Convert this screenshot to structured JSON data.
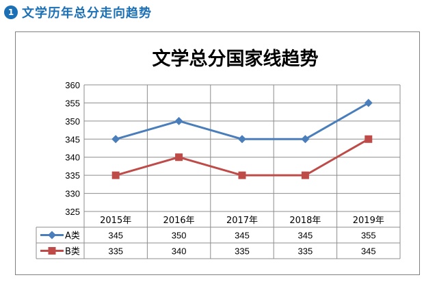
{
  "section": {
    "number": "1",
    "title": "文学历年总分走向趋势"
  },
  "chart_data": {
    "type": "line",
    "title": "文学总分国家线趋势",
    "categories": [
      "2015年",
      "2016年",
      "2017年",
      "2018年",
      "2019年"
    ],
    "series": [
      {
        "name": "A类",
        "values": [
          345,
          350,
          345,
          345,
          355
        ],
        "color": "#4a7ebb",
        "marker": "diamond"
      },
      {
        "name": "B类",
        "values": [
          335,
          340,
          335,
          335,
          345
        ],
        "color": "#be4b48",
        "marker": "square"
      }
    ],
    "ylim": [
      325,
      360
    ],
    "yticks": [
      "325",
      "330",
      "335",
      "340",
      "345",
      "350",
      "355",
      "360"
    ],
    "grid": true,
    "legend": "data-table"
  }
}
